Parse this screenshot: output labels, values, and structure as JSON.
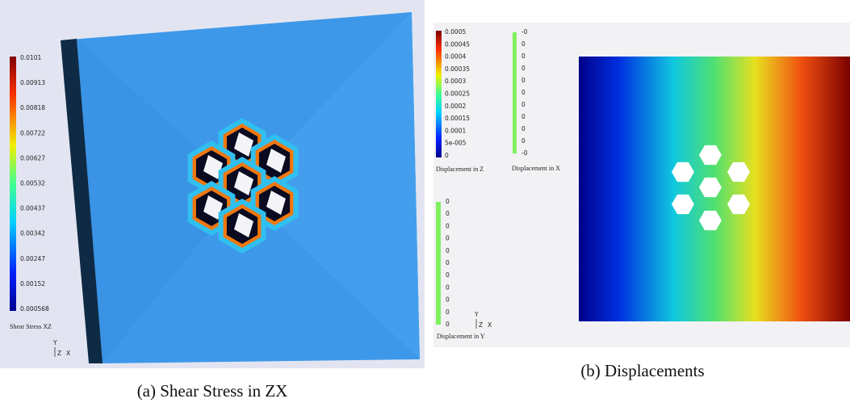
{
  "panels": [
    {
      "caption": "(a) Shear Stress in ZX",
      "colorbars": [
        {
          "title": "Shear Stress XZ",
          "ticks": [
            "0.0101",
            "0.00913",
            "0.00818",
            "0.00722",
            "0.00627",
            "0.00532",
            "0.00437",
            "0.00342",
            "0.00247",
            "0.00152",
            "0.000568"
          ]
        }
      ],
      "axes": [
        "Y",
        "Z",
        "X"
      ]
    },
    {
      "caption": "(b) Displacements",
      "colorbars": [
        {
          "title": "Displacement in Z",
          "ticks": [
            "0.0005",
            "0.00045",
            "0.0004",
            "0.00035",
            "0.0003",
            "0.00025",
            "0.0002",
            "0.00015",
            "0.0001",
            "5e-005",
            "0"
          ]
        },
        {
          "title": "Displacement in X",
          "ticks": [
            "-0",
            "0",
            "0",
            "0",
            "0",
            "0",
            "0",
            "0",
            "0",
            "0",
            "-0"
          ]
        },
        {
          "title": "Displacement in Y",
          "ticks": [
            "0",
            "0",
            "0",
            "0",
            "0",
            "0",
            "0",
            "0",
            "0",
            "0",
            "0"
          ]
        }
      ],
      "axes": [
        "Y",
        "Z",
        "X"
      ]
    }
  ]
}
